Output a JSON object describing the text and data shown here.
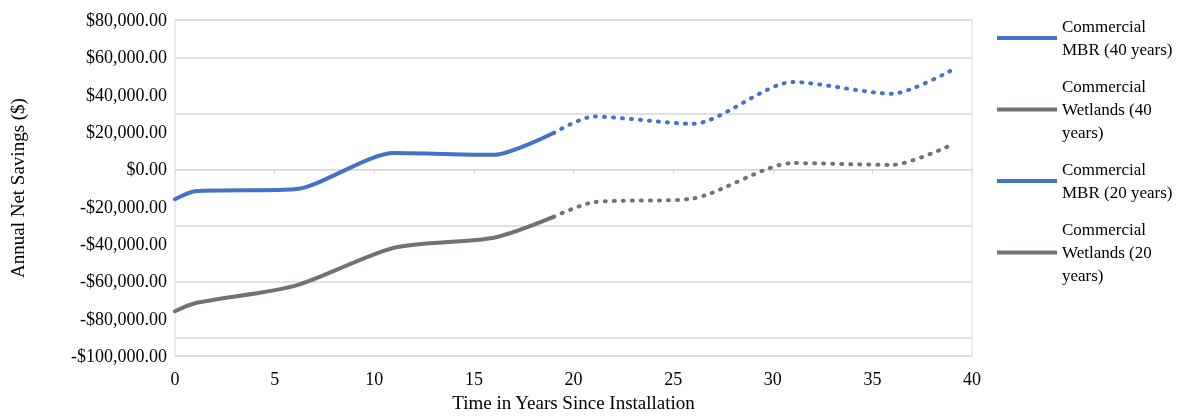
{
  "chart_data": {
    "type": "line",
    "xlabel": "Time in Years Since Installation",
    "ylabel": "Annual Net Savings ($)",
    "xlim": [
      0,
      40
    ],
    "xticks": [
      0,
      5,
      10,
      15,
      20,
      25,
      30,
      35,
      40
    ],
    "ylim": [
      -100000,
      80000
    ],
    "yticks": [
      {
        "value": -100000,
        "label": "-$100,000.00"
      },
      {
        "value": -80000,
        "label": "-$80,000.00"
      },
      {
        "value": -60000,
        "label": "-$60,000.00"
      },
      {
        "value": -40000,
        "label": "-$40,000.00"
      },
      {
        "value": -20000,
        "label": "-$20,000.00"
      },
      {
        "value": 0,
        "label": "$0.00"
      },
      {
        "value": 20000,
        "label": "$20,000.00"
      },
      {
        "value": 40000,
        "label": "$40,000.00"
      },
      {
        "value": 60000,
        "label": "$60,000.00"
      },
      {
        "value": 80000,
        "label": "$80,000.00"
      }
    ],
    "grid": "y",
    "legend": "right",
    "marker": "none",
    "series": [
      {
        "name": "Commercial MBR (40 years)",
        "color": "#4472c4",
        "line_style": "dotted",
        "x": [
          19,
          21,
          26,
          31,
          36,
          39
        ],
        "values": [
          19500,
          28300,
          24400,
          46800,
          40500,
          53200
        ]
      },
      {
        "name": "Commercial Wetlands (40 years)",
        "color": "#767171",
        "line_style": "dotted",
        "x": [
          19,
          21,
          26,
          31,
          36,
          39
        ],
        "values": [
          -25400,
          -17600,
          -15600,
          3400,
          2400,
          13200
        ]
      },
      {
        "name": "Commercial MBR (20 years)",
        "color": "#4472c4",
        "line_style": "solid",
        "x": [
          0,
          1,
          6,
          11,
          16,
          19
        ],
        "values": [
          -16000,
          -11700,
          -10700,
          8800,
          7800,
          19500
        ]
      },
      {
        "name": "Commercial Wetlands (20 years)",
        "color": "#767171",
        "line_style": "solid",
        "x": [
          0,
          1,
          6,
          11,
          16,
          19
        ],
        "values": [
          -76000,
          -71700,
          -62400,
          -42000,
          -36600,
          -25400
        ]
      }
    ]
  }
}
